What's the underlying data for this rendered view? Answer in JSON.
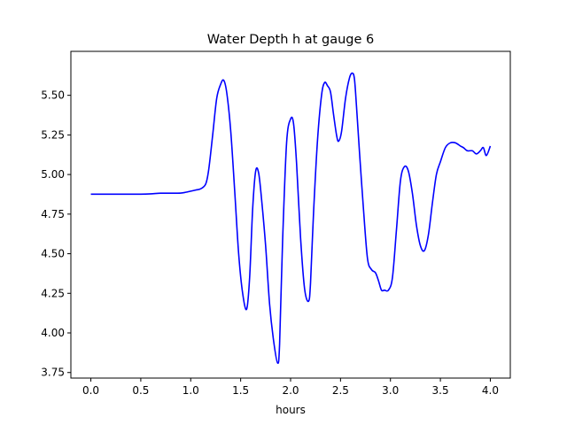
{
  "chart_data": {
    "type": "line",
    "title": "Water Depth h at gauge 6",
    "xlabel": "hours",
    "ylabel": "",
    "xlim": [
      -0.2,
      4.2
    ],
    "ylim": [
      3.715,
      5.7775
    ],
    "x_ticks": [
      0.0,
      0.5,
      1.0,
      1.5,
      2.0,
      2.5,
      3.0,
      3.5,
      4.0
    ],
    "x_tick_labels": [
      "0.0",
      "0.5",
      "1.0",
      "1.5",
      "2.0",
      "2.5",
      "3.0",
      "3.5",
      "4.0"
    ],
    "y_ticks": [
      3.75,
      4.0,
      4.25,
      4.5,
      4.75,
      5.0,
      5.25,
      5.5
    ],
    "y_tick_labels": [
      "3.75",
      "4.00",
      "4.25",
      "4.50",
      "4.75",
      "5.00",
      "5.25",
      "5.50"
    ],
    "grid": false,
    "line_color": "#0000ff",
    "series": [
      {
        "x": [
          0.0,
          0.2,
          0.4,
          0.5,
          0.6,
          0.7,
          0.8,
          0.9,
          0.95,
          1.0,
          1.05,
          1.1,
          1.15,
          1.18,
          1.22,
          1.26,
          1.3,
          1.33,
          1.36,
          1.4,
          1.44,
          1.48,
          1.52,
          1.56,
          1.59,
          1.62,
          1.65,
          1.68,
          1.71,
          1.75,
          1.79,
          1.83,
          1.87,
          1.89,
          1.92,
          1.96,
          2.0,
          2.03,
          2.06,
          2.1,
          2.14,
          2.18,
          2.2,
          2.23,
          2.27,
          2.31,
          2.34,
          2.37,
          2.4,
          2.43,
          2.46,
          2.48,
          2.51,
          2.55,
          2.59,
          2.62,
          2.64,
          2.66,
          2.69,
          2.73,
          2.77,
          2.81,
          2.85,
          2.88,
          2.91,
          2.94,
          2.98,
          3.02,
          3.06,
          3.1,
          3.14,
          3.18,
          3.22,
          3.26,
          3.3,
          3.34,
          3.38,
          3.42,
          3.46,
          3.5,
          3.55,
          3.6,
          3.65,
          3.7,
          3.73,
          3.77,
          3.82,
          3.86,
          3.9,
          3.93,
          3.96,
          4.0
        ],
        "y": [
          4.876,
          4.876,
          4.876,
          4.876,
          4.878,
          4.882,
          4.882,
          4.883,
          4.888,
          4.895,
          4.902,
          4.91,
          4.94,
          5.03,
          5.25,
          5.48,
          5.57,
          5.595,
          5.52,
          5.28,
          4.9,
          4.5,
          4.25,
          4.15,
          4.35,
          4.78,
          5.02,
          5.01,
          4.84,
          4.55,
          4.18,
          3.95,
          3.81,
          3.93,
          4.58,
          5.2,
          5.35,
          5.32,
          5.07,
          4.6,
          4.28,
          4.2,
          4.32,
          4.76,
          5.22,
          5.5,
          5.58,
          5.56,
          5.52,
          5.38,
          5.25,
          5.21,
          5.27,
          5.48,
          5.61,
          5.64,
          5.6,
          5.43,
          5.14,
          4.78,
          4.47,
          4.4,
          4.38,
          4.33,
          4.27,
          4.27,
          4.27,
          4.35,
          4.65,
          4.96,
          5.05,
          5.02,
          4.88,
          4.68,
          4.55,
          4.52,
          4.62,
          4.82,
          5.0,
          5.08,
          5.17,
          5.2,
          5.2,
          5.18,
          5.17,
          5.15,
          5.15,
          5.13,
          5.15,
          5.17,
          5.12,
          5.18
        ]
      }
    ]
  }
}
